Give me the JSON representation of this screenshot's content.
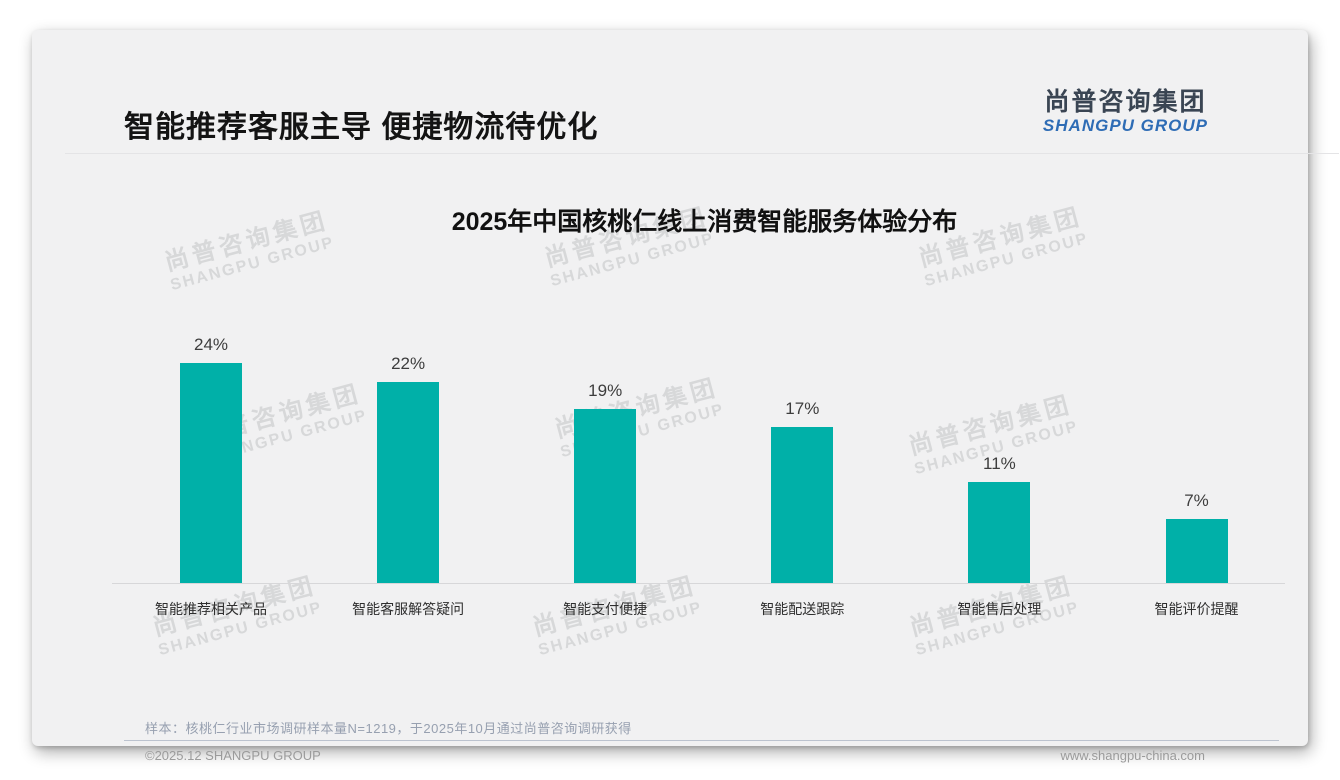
{
  "page": {
    "title": "智能推荐客服主导 便捷物流待优化",
    "logo": {
      "cn": "尚普咨询集团",
      "en": "SHANGPU GROUP",
      "cn_color": "#3a4553",
      "en_color": "#2e6cb5"
    },
    "watermark": {
      "line1": "尚普咨询集团",
      "line2": "SHANGPU GROUP"
    },
    "note": "样本：核桃仁行业市场调研样本量N=1219，于2025年10月通过尚普咨询调研获得",
    "footer": {
      "copyright": "©2025.12 SHANGPU GROUP",
      "website": "www.shangpu-china.com"
    }
  },
  "chart_data": {
    "type": "bar",
    "title": "2025年中国核桃仁线上消费智能服务体验分布",
    "categories": [
      "智能推荐相关产品",
      "智能客服解答疑问",
      "智能支付便捷",
      "智能配送跟踪",
      "智能售后处理",
      "智能评价提醒"
    ],
    "values": [
      24,
      22,
      19,
      17,
      11,
      7
    ],
    "value_labels": [
      "24%",
      "22%",
      "19%",
      "17%",
      "11%",
      "7%"
    ],
    "unit": "%",
    "bar_color": "#00b0a8",
    "ylim": [
      0,
      26
    ],
    "grid": false,
    "legend": false,
    "value_label_position": "above-bar"
  }
}
